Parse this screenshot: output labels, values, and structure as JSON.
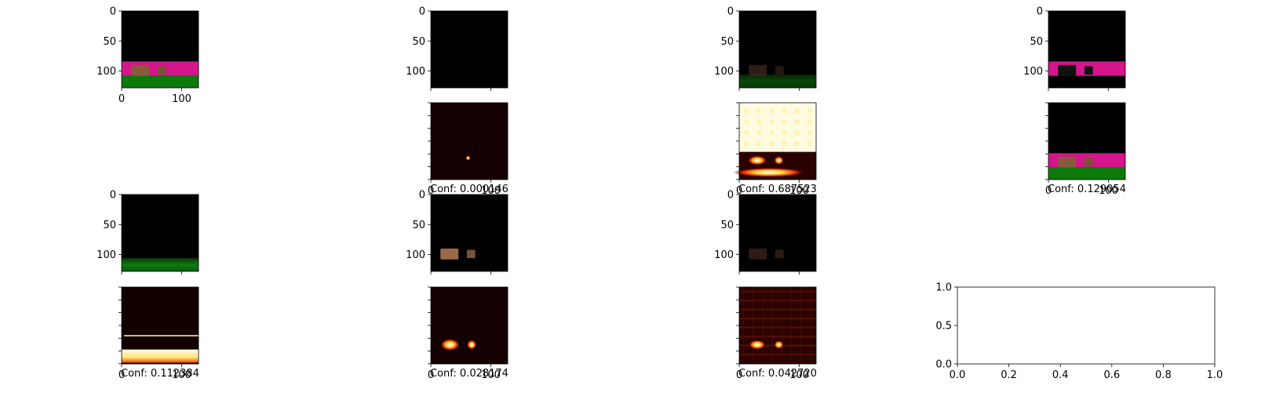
{
  "chart_data": [
    {
      "type": "heatmap",
      "panel": "r1c1",
      "xticks": [
        "0",
        "100"
      ],
      "yticks": [
        "0",
        "50",
        "100"
      ],
      "show_x": true,
      "show_y": true,
      "style": "scene_full"
    },
    {
      "type": "heatmap",
      "panel": "r1c2",
      "xticks": [
        "0",
        "100"
      ],
      "yticks": [
        "0",
        "50",
        "100"
      ],
      "show_x": false,
      "show_y": true,
      "style": "black"
    },
    {
      "type": "heatmap",
      "panel": "r1c3",
      "xticks": [
        "0",
        "100"
      ],
      "yticks": [
        "0",
        "50",
        "100"
      ],
      "show_x": false,
      "show_y": true,
      "style": "dim_scene"
    },
    {
      "type": "heatmap",
      "panel": "r1c4",
      "xticks": [
        "0",
        "100"
      ],
      "yticks": [
        "0",
        "50",
        "100"
      ],
      "show_x": false,
      "show_y": true,
      "style": "magenta_dark_objects"
    },
    {
      "type": "heatmap",
      "panel": "r2c2",
      "xticks": [
        "0",
        "100"
      ],
      "yticks": [],
      "show_x": true,
      "show_y": false,
      "style": "heat_dot",
      "caption": "Conf: 0.000146"
    },
    {
      "type": "heatmap",
      "panel": "r2c3",
      "xticks": [
        "0",
        "100"
      ],
      "yticks": [],
      "show_x": true,
      "show_y": false,
      "style": "heat_bright_top",
      "caption": "Conf: 0.687523"
    },
    {
      "type": "heatmap",
      "panel": "r2c4",
      "xticks": [
        "0",
        "100"
      ],
      "yticks": [],
      "show_x": true,
      "show_y": false,
      "style": "scene_full",
      "caption": "Conf: 0.129054"
    },
    {
      "type": "heatmap",
      "panel": "r3c1",
      "xticks": [
        "0",
        "100"
      ],
      "yticks": [
        "0",
        "50",
        "100"
      ],
      "show_x": false,
      "show_y": true,
      "style": "green_only"
    },
    {
      "type": "heatmap",
      "panel": "r3c2",
      "xticks": [
        "0",
        "100"
      ],
      "yticks": [
        "0",
        "50",
        "100"
      ],
      "show_x": false,
      "show_y": true,
      "style": "objects_only"
    },
    {
      "type": "heatmap",
      "panel": "r3c3",
      "xticks": [
        "0",
        "100"
      ],
      "yticks": [
        "0",
        "50",
        "100"
      ],
      "show_x": false,
      "show_y": true,
      "style": "objects_faint"
    },
    {
      "type": "heatmap",
      "panel": "r4c1",
      "xticks": [
        "0",
        "100"
      ],
      "yticks": [],
      "show_x": true,
      "show_y": false,
      "style": "heat_band",
      "caption": "Conf: 0.112384"
    },
    {
      "type": "heatmap",
      "panel": "r4c2",
      "xticks": [
        "0",
        "100"
      ],
      "yticks": [],
      "show_x": true,
      "show_y": false,
      "style": "heat_objects",
      "caption": "Conf: 0.028174"
    },
    {
      "type": "heatmap",
      "panel": "r4c3",
      "xticks": [
        "0",
        "100"
      ],
      "yticks": [],
      "show_x": true,
      "show_y": false,
      "style": "heat_grid",
      "caption": "Conf: 0.042720"
    },
    {
      "type": "line",
      "panel": "r4c4",
      "series": [],
      "xlim": [
        0,
        1
      ],
      "ylim": [
        0,
        1
      ],
      "xticks": [
        "0.0",
        "0.2",
        "0.4",
        "0.6",
        "0.8",
        "1.0"
      ],
      "yticks": [
        "0.0",
        "0.5",
        "1.0"
      ]
    }
  ]
}
